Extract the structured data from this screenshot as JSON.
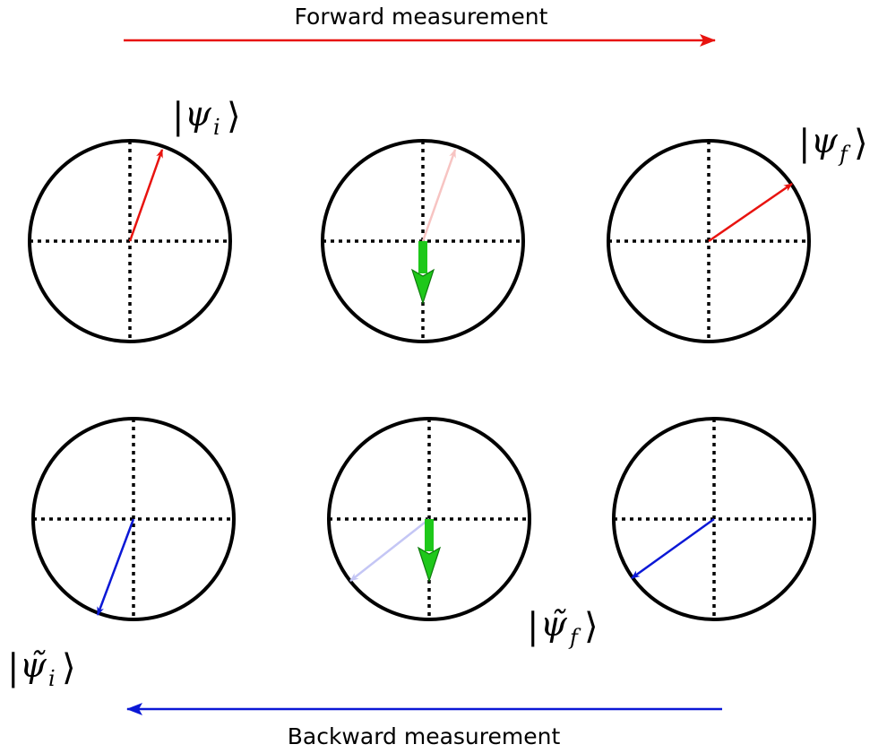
{
  "forward": {
    "label": "Forward measurement",
    "color": "#e8130f"
  },
  "backward": {
    "label": "Backward measurement",
    "color": "#0b18d6"
  },
  "states": {
    "psi_i": {
      "symbol": "ψ",
      "sub": "i"
    },
    "psi_f": {
      "symbol": "ψ",
      "sub": "f"
    },
    "psi_tilde_i": {
      "symbol": "ψ̃",
      "sub": "i"
    },
    "psi_tilde_f": {
      "symbol": "ψ̃",
      "sub": "f"
    }
  },
  "colors": {
    "measurement": "#1ec81a",
    "faded_red": "#f7c4c2",
    "faded_blue": "#c4c6f5"
  }
}
